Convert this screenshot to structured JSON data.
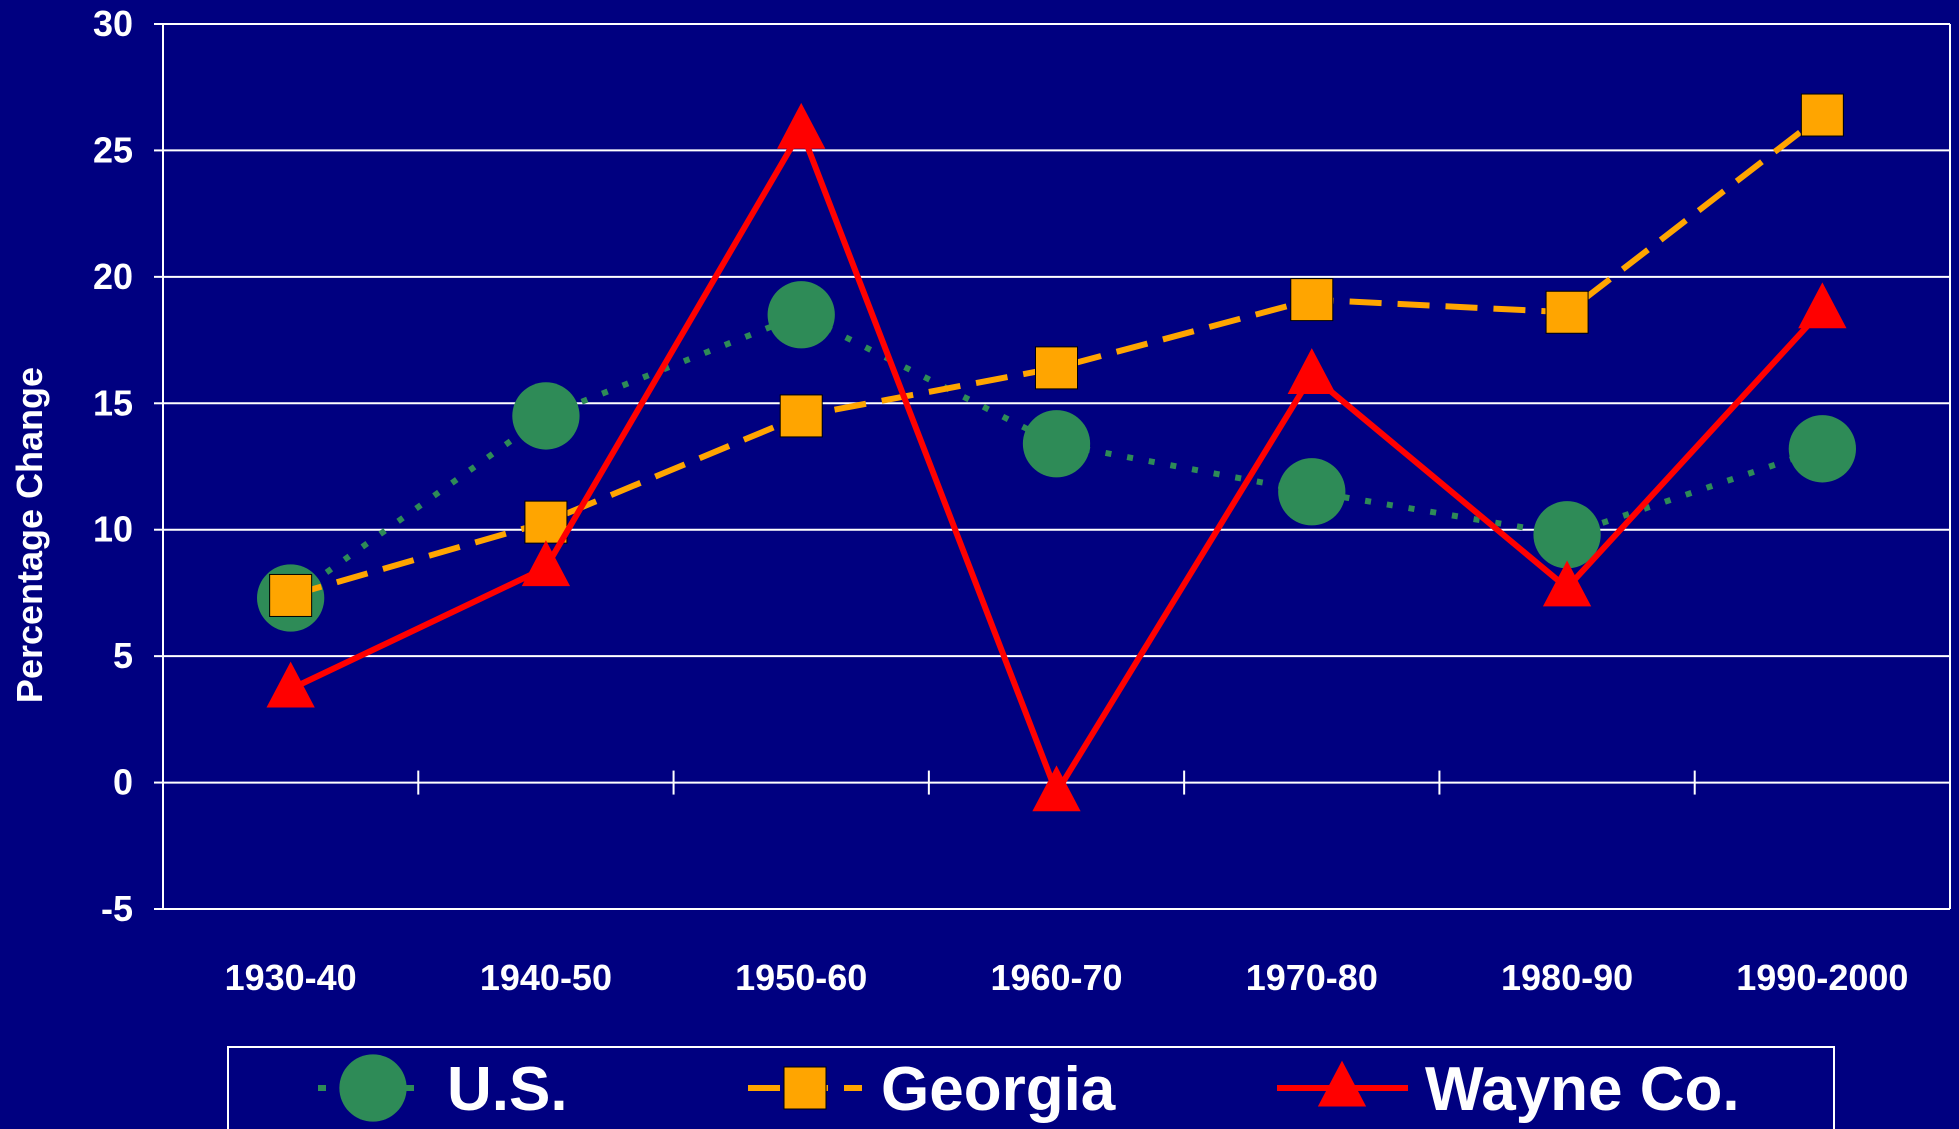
{
  "chart_data": {
    "type": "line",
    "title": "",
    "xlabel": "",
    "ylabel": "Percentage Change",
    "categories": [
      "1930-40",
      "1940-50",
      "1950-60",
      "1960-70",
      "1970-80",
      "1980-90",
      "1990-2000"
    ],
    "ylim": [
      -5,
      30
    ],
    "yticks": [
      "30",
      "25",
      "20",
      "15",
      "10",
      "5",
      "0",
      "-5"
    ],
    "grid": true,
    "legend_position": "bottom",
    "series": [
      {
        "name": "U.S.",
        "values": [
          7.3,
          14.5,
          18.5,
          13.4,
          11.5,
          9.8,
          13.2
        ],
        "color": "#2E8B57",
        "line_style": "dotted",
        "marker": "circle"
      },
      {
        "name": "Georgia",
        "values": [
          7.4,
          10.3,
          14.5,
          16.4,
          19.1,
          18.6,
          26.4
        ],
        "color": "#FFA500",
        "line_style": "dashed",
        "marker": "square"
      },
      {
        "name": "Wayne Co.",
        "values": [
          3.7,
          8.5,
          25.8,
          -0.4,
          16.1,
          7.7,
          18.7
        ],
        "color": "#FF0000",
        "line_style": "solid",
        "marker": "triangle"
      }
    ]
  },
  "colors": {
    "background": "#000080",
    "text": "#FFFFFF",
    "gridline": "#FFFFFF"
  }
}
